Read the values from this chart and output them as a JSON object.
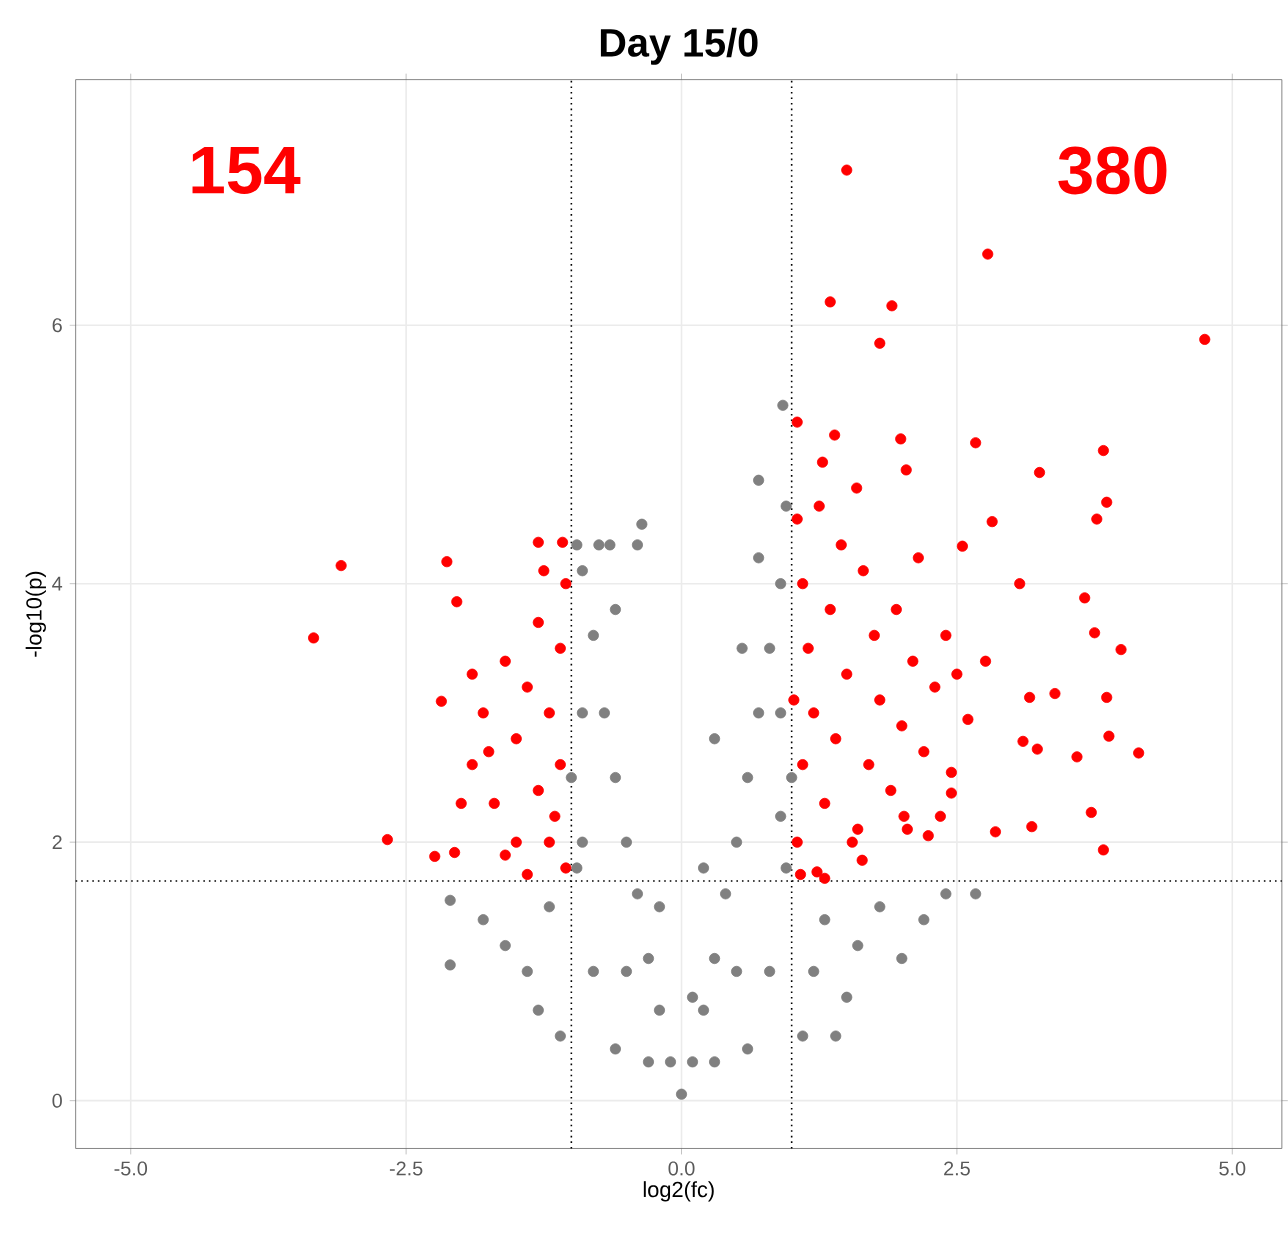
{
  "chart_data": {
    "type": "scatter",
    "title": "Day 15/0",
    "xlabel": "log2(fc)",
    "ylabel": "-log10(p)",
    "annotations": [
      "154",
      "380"
    ],
    "xlim": [
      -5.5,
      5.45
    ],
    "ylim": [
      -0.37,
      7.9
    ],
    "xticks": [
      {
        "value": -5,
        "label": "-5.0"
      },
      {
        "value": -2.5,
        "label": "-2.5"
      },
      {
        "value": 0,
        "label": "0.0"
      },
      {
        "value": 2.5,
        "label": "2.5"
      },
      {
        "value": 5,
        "label": "5.0"
      }
    ],
    "yticks": [
      0,
      2,
      4,
      6
    ],
    "grid": true,
    "ref_lines": [
      {
        "axis": "x",
        "value": -1,
        "line_style": "dotted"
      },
      {
        "axis": "x",
        "value": 1,
        "line_style": "dotted"
      },
      {
        "axis": "y",
        "value": 1.7,
        "line_style": "dotted"
      }
    ],
    "series": [
      {
        "color": "#808080",
        "x": [
          0,
          0.1,
          -0.1,
          0.2,
          -0.2,
          0.3,
          -0.3,
          0.4,
          -0.4,
          0.5,
          -0.5,
          0.6,
          -0.6,
          0.7,
          -0.7,
          0.8,
          -0.8,
          0.9,
          -0.9,
          0.95,
          -0.95,
          0.92,
          0.7,
          -0.36,
          -0.4,
          -0.75,
          -0.65,
          -2.1,
          -2.1,
          -1.8,
          -1.6,
          -1.4,
          -1.3,
          -1.2,
          -1.1,
          1.1,
          1.2,
          1.3,
          1.5,
          1.6,
          1.8,
          2.0,
          2.2,
          2.4,
          2.67,
          1.4,
          -0.9,
          -0.9,
          0.9,
          0.9,
          -0.8,
          0.8,
          -0.6,
          0.6,
          -0.5,
          0.5,
          0.3,
          -0.3,
          0.2,
          -0.2,
          0.1,
          -1.0,
          1.0,
          -0.95,
          0.95,
          0.55,
          -0.6,
          0.7,
          0.3
        ],
        "values": [
          0.05,
          0.3,
          0.3,
          0.7,
          0.7,
          1.1,
          1.1,
          1.6,
          1.6,
          2.0,
          2.0,
          2.5,
          2.5,
          3.0,
          3.0,
          3.5,
          3.6,
          4.0,
          4.1,
          4.6,
          4.3,
          5.38,
          4.8,
          4.46,
          4.3,
          4.3,
          4.3,
          1.05,
          1.55,
          1.4,
          1.2,
          1.0,
          0.7,
          1.5,
          0.5,
          0.5,
          1.0,
          1.4,
          0.8,
          1.2,
          1.5,
          1.1,
          1.4,
          1.6,
          1.6,
          0.5,
          2.0,
          3.0,
          2.2,
          3.0,
          1.0,
          1.0,
          0.4,
          0.4,
          1.0,
          1.0,
          0.3,
          0.3,
          1.8,
          1.5,
          0.8,
          2.5,
          2.5,
          1.8,
          1.8,
          3.5,
          3.8,
          4.2,
          2.8
        ]
      },
      {
        "color": "#ff0000",
        "x": [
          1.5,
          2.78,
          4.75,
          1.35,
          1.91,
          1.8,
          1.05,
          1.39,
          1.99,
          2.67,
          3.83,
          3.25,
          3.86,
          3.77,
          2.82,
          2.55,
          1.59,
          2.04,
          1.28,
          3.07,
          3.66,
          3.99,
          3.75,
          2.76,
          3.39,
          3.86,
          3.16,
          3.1,
          3.23,
          3.88,
          4.15,
          3.59,
          3.72,
          3.18,
          3.83,
          2.85,
          2.45,
          2.45,
          2.24,
          1.64,
          1.23,
          2.02,
          1.05,
          1.1,
          1.2,
          1.15,
          1.1,
          1.05,
          1.3,
          1.4,
          1.5,
          1.35,
          1.45,
          1.6,
          1.7,
          1.8,
          1.75,
          1.65,
          1.9,
          2.0,
          2.1,
          1.95,
          2.2,
          2.3,
          2.15,
          2.4,
          1.25,
          1.55,
          2.05,
          1.02,
          1.08,
          1.3,
          2.6,
          2.5,
          2.35,
          -3.09,
          -3.34,
          -2.67,
          -2.13,
          -2.04,
          -2.18,
          -2.24,
          -2.06,
          -1.3,
          -1.08,
          -1.9,
          -1.8,
          -1.7,
          -1.6,
          -1.5,
          -1.5,
          -1.4,
          -1.3,
          -1.3,
          -1.2,
          -1.2,
          -1.1,
          -1.1,
          -1.05,
          -1.05,
          -1.6,
          -1.75,
          -2.0,
          -1.4,
          -1.25,
          -1.9,
          -1.15
        ],
        "values": [
          7.2,
          6.55,
          5.89,
          6.18,
          6.15,
          5.86,
          5.25,
          5.15,
          5.12,
          5.09,
          5.03,
          4.86,
          4.63,
          4.5,
          4.48,
          4.29,
          4.74,
          4.88,
          4.94,
          4.0,
          3.89,
          3.49,
          3.62,
          3.4,
          3.15,
          3.12,
          3.12,
          2.78,
          2.72,
          2.82,
          2.69,
          2.66,
          2.23,
          2.12,
          1.94,
          2.08,
          2.38,
          2.54,
          2.05,
          1.86,
          1.77,
          2.2,
          2.0,
          2.6,
          3.0,
          3.5,
          4.0,
          4.5,
          2.3,
          2.8,
          3.3,
          3.8,
          4.3,
          2.1,
          2.6,
          3.1,
          3.6,
          4.1,
          2.4,
          2.9,
          3.4,
          3.8,
          2.7,
          3.2,
          4.2,
          3.6,
          4.6,
          2.0,
          2.1,
          3.1,
          1.75,
          1.72,
          2.95,
          3.3,
          2.2,
          4.14,
          3.58,
          2.02,
          4.17,
          3.86,
          3.09,
          1.89,
          1.92,
          4.32,
          4.32,
          2.6,
          3.0,
          2.3,
          3.4,
          2.0,
          2.8,
          3.2,
          2.4,
          3.7,
          2.0,
          3.0,
          2.6,
          3.5,
          1.8,
          4.0,
          1.9,
          2.7,
          2.3,
          1.75,
          4.1,
          3.3,
          2.2
        ]
      }
    ]
  }
}
